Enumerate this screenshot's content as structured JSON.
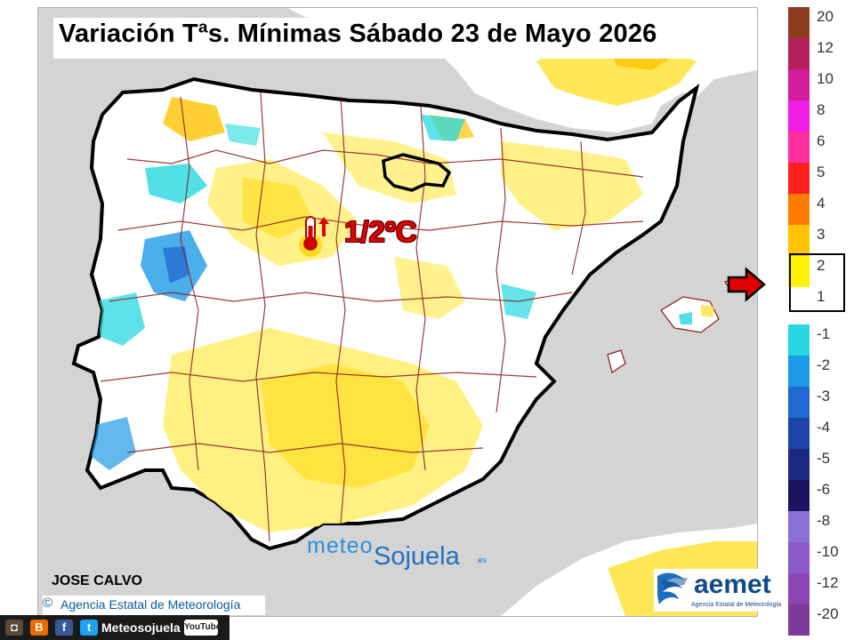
{
  "title": "Variación Tªs. Mínimas Sábado 23 de Mayo 2026",
  "highlight": {
    "value_label": "1/2ºC",
    "icon": "thermometer-up-icon",
    "color": "#e00000"
  },
  "author": "JOSE CALVO",
  "copyright": {
    "symbol": "©",
    "text": "Agencia Estatal de Meteorología"
  },
  "watermark": {
    "part1": "meteo",
    "part2": "Sojuela",
    "part3": ".es"
  },
  "aemet_logo": {
    "name": "aemet",
    "subtitle": "Agencia Estatal de Meteorología"
  },
  "social": {
    "icons": [
      "instagram-icon",
      "blogger-icon",
      "facebook-icon",
      "twitter-icon"
    ],
    "label": "Meteosojuela",
    "youtube": "YouTube"
  },
  "legend": {
    "warm": [
      {
        "label": "20",
        "color": "#8b3c1a"
      },
      {
        "label": "12",
        "color": "#b5215d"
      },
      {
        "label": "10",
        "color": "#d31c9c"
      },
      {
        "label": "8",
        "color": "#ef1ee6"
      },
      {
        "label": "6",
        "color": "#ff2f9e"
      },
      {
        "label": "5",
        "color": "#ff1f1f"
      },
      {
        "label": "4",
        "color": "#ff7b00"
      },
      {
        "label": "3",
        "color": "#ffc400"
      },
      {
        "label": "2",
        "color": "#fff200"
      },
      {
        "label": "1",
        "color": "#ffffff"
      }
    ],
    "cold": [
      {
        "label": "-1",
        "color": "#25d8e0"
      },
      {
        "label": "-2",
        "color": "#1e9be6"
      },
      {
        "label": "-3",
        "color": "#2168d2"
      },
      {
        "label": "-4",
        "color": "#1e44aa"
      },
      {
        "label": "-5",
        "color": "#1b2a7e"
      },
      {
        "label": "-6",
        "color": "#1b1460"
      },
      {
        "label": "-8",
        "color": "#8a71d6"
      },
      {
        "label": "-10",
        "color": "#8b5ac8"
      },
      {
        "label": "-12",
        "color": "#8b45b4"
      },
      {
        "label": "-20",
        "color": "#7e3a9a"
      }
    ],
    "selected_range": [
      "1",
      "2"
    ]
  }
}
